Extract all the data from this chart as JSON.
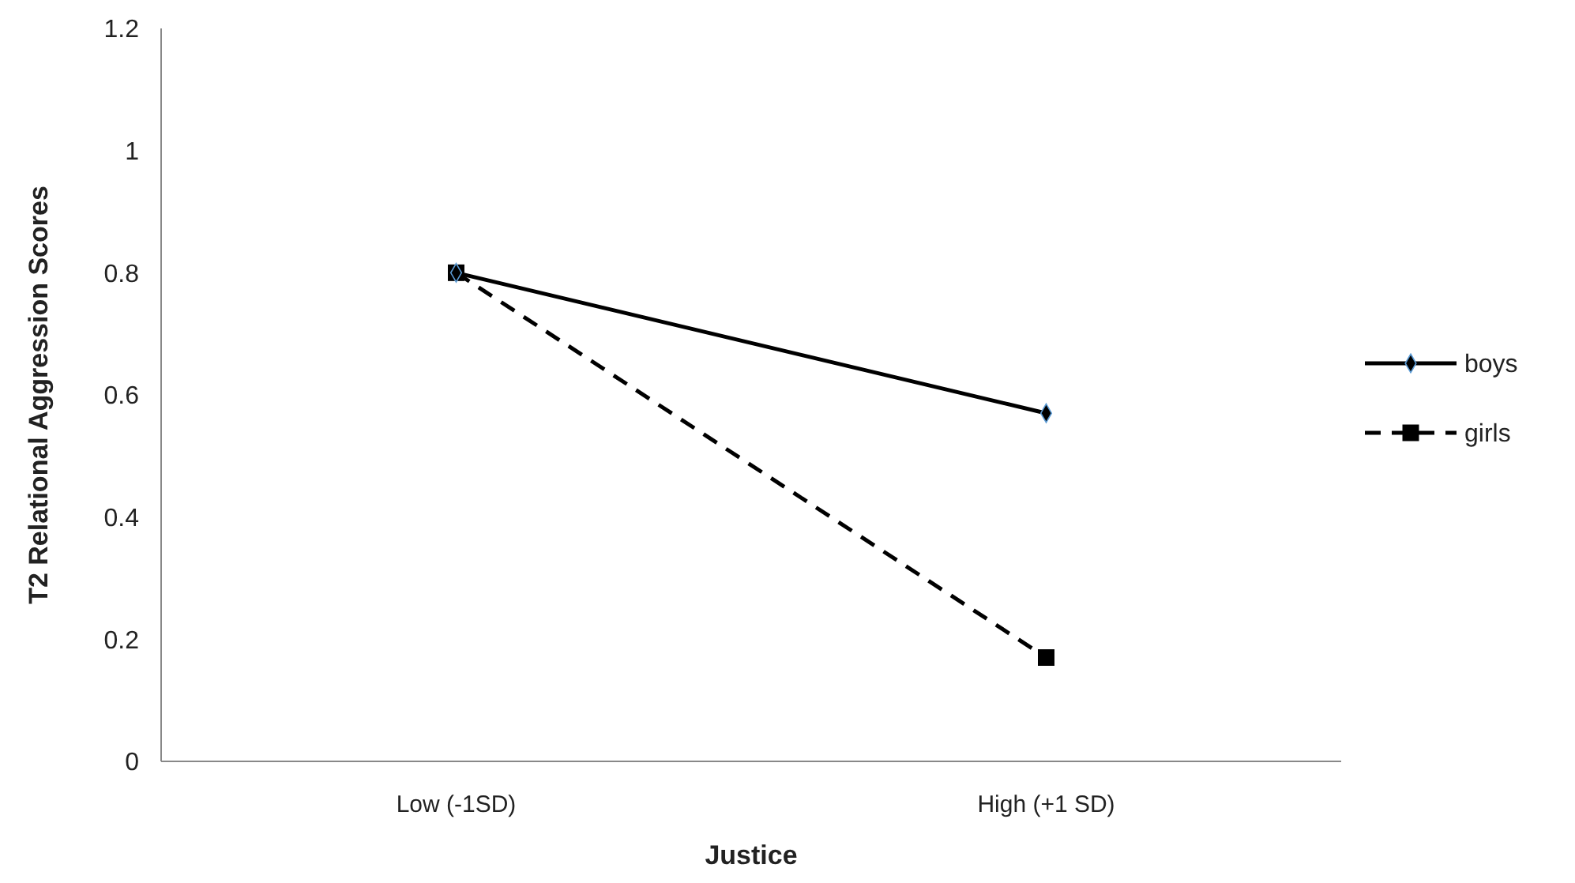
{
  "chart_data": {
    "type": "line",
    "xlabel": "Justice",
    "ylabel": "T2 Relational Aggression Scores",
    "categories": [
      "Low (-1SD)",
      "High (+1 SD)"
    ],
    "ylim": [
      0,
      1.2
    ],
    "yticks": [
      0,
      0.2,
      0.4,
      0.6,
      0.8,
      1,
      1.2
    ],
    "grid": false,
    "legend": "right",
    "series": [
      {
        "name": "boys",
        "color": "#000000",
        "values": [
          0.8,
          0.57
        ],
        "marker": "diamond",
        "line_style": "solid"
      },
      {
        "name": "girls",
        "color": "#000000",
        "values": [
          0.8,
          0.17
        ],
        "marker": "square",
        "line_style": "dashed"
      }
    ]
  }
}
